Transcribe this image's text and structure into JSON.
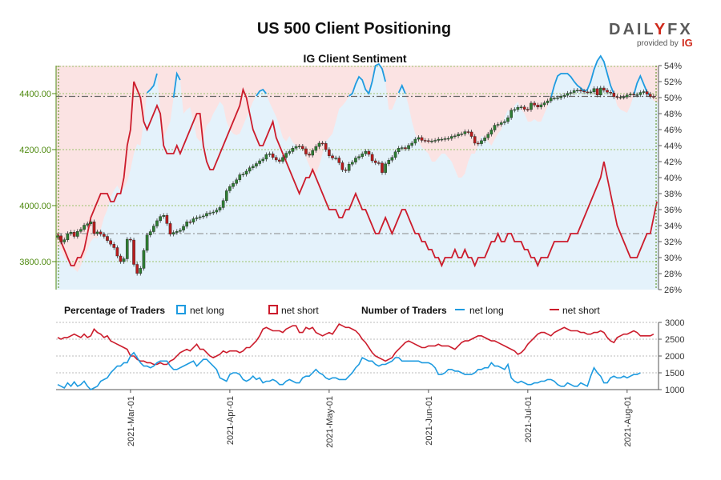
{
  "header": {
    "title": "US 500 Client Positioning",
    "brand": "DAILYFX",
    "brand_left": "DAIL",
    "brand_y": "Y",
    "brand_right": "FX",
    "provided_by": "provided by",
    "ig": "IG"
  },
  "chart_data": [
    {
      "type": "candlestick+area",
      "title": "IG Client Sentiment",
      "price_axis": {
        "ticks": [
          "3800.00",
          "4000.00",
          "4200.00",
          "4400.00"
        ],
        "tick_values": [
          3800,
          4000,
          4200,
          4400
        ],
        "range": [
          3700,
          4500
        ]
      },
      "percent_axis": {
        "ticks": [
          "26%",
          "28%",
          "30%",
          "32%",
          "34%",
          "36%",
          "38%",
          "40%",
          "42%",
          "44%",
          "46%",
          "48%",
          "50%",
          "52%",
          "54%"
        ],
        "range": [
          26,
          54
        ]
      },
      "reference_levels": {
        "price": 4390,
        "percent_line": 33
      },
      "x_labels": [
        "2021-Mar-01",
        "2021-Apr-01",
        "2021-May-01",
        "2021-Jun-01",
        "2021-Jul-01",
        "2021-Aug-01"
      ],
      "x_label_index": [
        22,
        52,
        82,
        112,
        142,
        172
      ],
      "net_long_pct": [
        31.5,
        31,
        30,
        29.6,
        29,
        28.6,
        28.2,
        29,
        30,
        31,
        32,
        32.5,
        32.4,
        33.5,
        35,
        36,
        37.5,
        38.4,
        39,
        38.3,
        38.7,
        39.5,
        41,
        43,
        44.2,
        44,
        47,
        50.6,
        51,
        51.5,
        53,
        48.2,
        45,
        46,
        47,
        50,
        53,
        52.2,
        48,
        48.5,
        48.8,
        47,
        45,
        44.5,
        45,
        46.5,
        47,
        48,
        48.7,
        49.5,
        49,
        47,
        46,
        45.5,
        45.3,
        45.5,
        46.5,
        47.5,
        48.5,
        49.5,
        50.2,
        50.8,
        51,
        50.5,
        49.4,
        48.5,
        47.6,
        46.4,
        45,
        44.5,
        45.2,
        44.4,
        44,
        43.6,
        43.5,
        42.5,
        41.5,
        40.5,
        40.5,
        41.5,
        43,
        44.5,
        45,
        45.5,
        47,
        48.6,
        49,
        49.5,
        50.2,
        50.5,
        51.7,
        52.6,
        52.2,
        51,
        50.5,
        52,
        54,
        54.2,
        53.6,
        52,
        48.5,
        48.5,
        49.5,
        50.6,
        51.5,
        50.5,
        49,
        47,
        45.5,
        44.5,
        43.8,
        43.4,
        43,
        42,
        42,
        42.5,
        43,
        43,
        42.5,
        42,
        41,
        40,
        40,
        40.5,
        42,
        43,
        43,
        44,
        45.2,
        45,
        44.5,
        44,
        44.8,
        45.5,
        46,
        47.5,
        48.5,
        48,
        49,
        49.5,
        48.5,
        48,
        47,
        47,
        47.3,
        47,
        47,
        48,
        49,
        50,
        51.5,
        52.7,
        53,
        53,
        53,
        52.6,
        52,
        51.5,
        51.2,
        50.8,
        51,
        52,
        53.5,
        54.6,
        55.2,
        54.5,
        53,
        51.5,
        50.5,
        49,
        48.5,
        48.3,
        48.1,
        49,
        50.3,
        51.8,
        52.7,
        51.7,
        50.7,
        50.2,
        49.6,
        49.4
      ],
      "net_short_pct": [
        33,
        32,
        31,
        30,
        29,
        29,
        30,
        30,
        31,
        33,
        35,
        36,
        37,
        38,
        38,
        38,
        37,
        37,
        38,
        38,
        40,
        44,
        46,
        52,
        51,
        50,
        47,
        46,
        47,
        48,
        49,
        48,
        44,
        43,
        43,
        43,
        44,
        43,
        44,
        45,
        46,
        47,
        48,
        48,
        44,
        42,
        41,
        41,
        42,
        43,
        44,
        45,
        46,
        47,
        48,
        49,
        51,
        50,
        48,
        46,
        45,
        44,
        44,
        45,
        46,
        47,
        45,
        44,
        43,
        42,
        41,
        40,
        39,
        38,
        39,
        40,
        40,
        41,
        40,
        39,
        38,
        37,
        36,
        36,
        36,
        35,
        35,
        36,
        36,
        37,
        38,
        37,
        36,
        36,
        35,
        34,
        33,
        33,
        34,
        35,
        34,
        33,
        34,
        35,
        36,
        36,
        35,
        34,
        33,
        33,
        32,
        32,
        31,
        31,
        30,
        30,
        29,
        30,
        30,
        30,
        31,
        30,
        30,
        31,
        30,
        30,
        29,
        30,
        30,
        30,
        31,
        32,
        32,
        33,
        32,
        32,
        33,
        33,
        32,
        32,
        32,
        31,
        31,
        30,
        30,
        29,
        30,
        30,
        30,
        31,
        32,
        32,
        32,
        32,
        32,
        33,
        33,
        33,
        34,
        35,
        36,
        37,
        38,
        39,
        40,
        42,
        40,
        38,
        36,
        34,
        33,
        32,
        31,
        30,
        30,
        30,
        31,
        32,
        33,
        33,
        35,
        37
      ],
      "price_close": [
        3892,
        3870,
        3878,
        3900,
        3905,
        3890,
        3908,
        3915,
        3930,
        3935,
        3942,
        3900,
        3906,
        3898,
        3890,
        3875,
        3862,
        3850,
        3820,
        3800,
        3810,
        3880,
        3877,
        3790,
        3758,
        3776,
        3840,
        3895,
        3907,
        3927,
        3946,
        3961,
        3965,
        3936,
        3898,
        3904,
        3908,
        3912,
        3926,
        3942,
        3941,
        3953,
        3957,
        3960,
        3963,
        3972,
        3974,
        3977,
        3984,
        3993,
        4018,
        4053,
        4068,
        4079,
        4092,
        4110,
        4112,
        4123,
        4135,
        4141,
        4150,
        4160,
        4166,
        4182,
        4185,
        4172,
        4163,
        4158,
        4172,
        4187,
        4193,
        4205,
        4211,
        4212,
        4203,
        4184,
        4180,
        4197,
        4211,
        4223,
        4222,
        4200,
        4178,
        4170,
        4170,
        4153,
        4128,
        4125,
        4148,
        4155,
        4170,
        4175,
        4185,
        4194,
        4183,
        4160,
        4153,
        4152,
        4118,
        4149,
        4162,
        4172,
        4192,
        4205,
        4207,
        4203,
        4215,
        4223,
        4237,
        4243,
        4233,
        4232,
        4230,
        4231,
        4233,
        4237,
        4237,
        4239,
        4240,
        4247,
        4249,
        4255,
        4256,
        4264,
        4263,
        4247,
        4223,
        4221,
        4232,
        4242,
        4255,
        4270,
        4287,
        4290,
        4296,
        4300,
        4314,
        4341,
        4343,
        4351,
        4352,
        4344,
        4343,
        4366,
        4359,
        4352,
        4360,
        4367,
        4374,
        4384,
        4384,
        4385,
        4390,
        4394,
        4401,
        4404,
        4411,
        4412,
        4409,
        4406,
        4405,
        4406,
        4418,
        4395,
        4420,
        4412,
        4405,
        4402,
        4389,
        4387,
        4387,
        4388,
        4395,
        4398,
        4395,
        4396,
        4404,
        4407,
        4398,
        4390,
        4389
      ],
      "series_names": [
        "net long",
        "net short"
      ],
      "series_colors": {
        "net_long": "#1e9be0",
        "net_short": "#cc1c2c",
        "candle_up": "#2e7d32",
        "candle_down": "#b71c1c"
      }
    },
    {
      "type": "line",
      "subtitle_left": "Percentage of Traders",
      "subtitle_right": "Number of Traders",
      "legend": {
        "pct_long": "net long",
        "pct_short": "net short",
        "num_long": "net long",
        "num_short": "net short"
      },
      "y_ticks": [
        "3000",
        "2500",
        "2000",
        "1500",
        "1000"
      ],
      "y_values": [
        3000,
        2500,
        2000,
        1500,
        1000
      ],
      "net_long_count": [
        1150,
        1100,
        1050,
        1200,
        1100,
        1230,
        1100,
        1150,
        1250,
        1100,
        1000,
        1050,
        1100,
        1250,
        1300,
        1350,
        1500,
        1600,
        1700,
        1700,
        1800,
        1800,
        2000,
        2100,
        1950,
        1800,
        1700,
        1700,
        1650,
        1700,
        1800,
        1850,
        1850,
        1850,
        1700,
        1600,
        1600,
        1650,
        1700,
        1750,
        1800,
        1850,
        1700,
        1800,
        1900,
        1900,
        1800,
        1700,
        1600,
        1350,
        1300,
        1250,
        1450,
        1500,
        1500,
        1450,
        1300,
        1250,
        1300,
        1400,
        1300,
        1350,
        1200,
        1250,
        1250,
        1300,
        1250,
        1150,
        1150,
        1250,
        1300,
        1250,
        1200,
        1200,
        1350,
        1400,
        1400,
        1500,
        1600,
        1500,
        1450,
        1350,
        1300,
        1350,
        1350,
        1300,
        1300,
        1300,
        1400,
        1500,
        1650,
        1750,
        1950,
        1900,
        1850,
        1850,
        1750,
        1700,
        1750,
        1750,
        1800,
        1850,
        1950,
        1950,
        1850,
        1850,
        1850,
        1850,
        1850,
        1850,
        1800,
        1800,
        1800,
        1750,
        1650,
        1450,
        1450,
        1500,
        1600,
        1600,
        1550,
        1550,
        1500,
        1450,
        1450,
        1450,
        1500,
        1600,
        1600,
        1650,
        1650,
        1800,
        1700,
        1700,
        1650,
        1600,
        1750,
        1350,
        1250,
        1200,
        1250,
        1200,
        1150,
        1150,
        1200,
        1200,
        1250,
        1250,
        1300,
        1300,
        1250,
        1150,
        1100,
        1100,
        1200,
        1150,
        1100,
        1100,
        1200,
        1150,
        1100,
        1400,
        1650,
        1500,
        1400,
        1200,
        1200,
        1350,
        1400,
        1350,
        1350,
        1400,
        1350,
        1400,
        1450,
        1450,
        1500
      ],
      "net_short_count": [
        2550,
        2500,
        2550,
        2550,
        2600,
        2650,
        2600,
        2550,
        2650,
        2550,
        2600,
        2800,
        2700,
        2650,
        2550,
        2600,
        2450,
        2400,
        2350,
        2300,
        2250,
        2200,
        2000,
        2000,
        1900,
        1850,
        1850,
        1800,
        1800,
        1750,
        1750,
        1800,
        1750,
        1750,
        1850,
        1900,
        2000,
        2100,
        2150,
        2200,
        2150,
        2250,
        2350,
        2200,
        2200,
        2100,
        2000,
        1950,
        2000,
        2050,
        2150,
        2100,
        2150,
        2150,
        2150,
        2100,
        2150,
        2250,
        2250,
        2350,
        2450,
        2600,
        2800,
        2850,
        2800,
        2750,
        2750,
        2750,
        2700,
        2800,
        2850,
        2900,
        2900,
        2700,
        2700,
        2850,
        2800,
        2850,
        2700,
        2650,
        2600,
        2650,
        2700,
        2650,
        2800,
        2950,
        2900,
        2850,
        2850,
        2800,
        2750,
        2650,
        2500,
        2400,
        2250,
        2100,
        2000,
        1950,
        1900,
        1850,
        1900,
        1950,
        2100,
        2200,
        2300,
        2400,
        2450,
        2400,
        2350,
        2300,
        2250,
        2250,
        2300,
        2300,
        2300,
        2350,
        2300,
        2300,
        2300,
        2250,
        2200,
        2300,
        2400,
        2450,
        2450,
        2500,
        2550,
        2600,
        2600,
        2550,
        2500,
        2450,
        2450,
        2400,
        2350,
        2300,
        2250,
        2200,
        2150,
        2050,
        2100,
        2200,
        2350,
        2450,
        2550,
        2650,
        2700,
        2700,
        2650,
        2600,
        2700,
        2750,
        2800,
        2850,
        2800,
        2750,
        2750,
        2750,
        2700,
        2700,
        2650,
        2650,
        2700,
        2700,
        2750,
        2700,
        2550,
        2450,
        2400,
        2550,
        2600,
        2650,
        2650,
        2700,
        2750,
        2700,
        2600,
        2600,
        2600,
        2600,
        2650
      ],
      "x_labels": [
        "2021-Mar-01",
        "2021-Apr-01",
        "2021-May-01",
        "2021-Jun-01",
        "2021-Jul-01",
        "2021-Aug-01"
      ]
    }
  ]
}
